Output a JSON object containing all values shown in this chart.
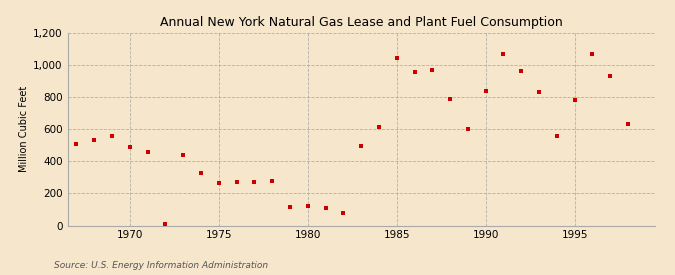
{
  "title": "Annual New York Natural Gas Lease and Plant Fuel Consumption",
  "ylabel": "Million Cubic Feet",
  "source": "Source: U.S. Energy Information Administration",
  "background_color": "#f5e6cc",
  "plot_bg_color": "#f5e6cc",
  "marker_color": "#cc0000",
  "xlim": [
    1966.5,
    1999.5
  ],
  "ylim": [
    0,
    1200
  ],
  "yticks": [
    0,
    200,
    400,
    600,
    800,
    1000,
    1200
  ],
  "xticks": [
    1970,
    1975,
    1980,
    1985,
    1990,
    1995
  ],
  "years": [
    1967,
    1968,
    1969,
    1970,
    1971,
    1972,
    1973,
    1974,
    1975,
    1976,
    1977,
    1978,
    1979,
    1980,
    1981,
    1982,
    1983,
    1984,
    1985,
    1986,
    1987,
    1988,
    1989,
    1990,
    1991,
    1992,
    1993,
    1994,
    1995,
    1996,
    1997,
    1998
  ],
  "values": [
    505,
    535,
    560,
    490,
    460,
    10,
    440,
    330,
    265,
    270,
    270,
    280,
    115,
    120,
    110,
    80,
    495,
    615,
    1045,
    960,
    970,
    790,
    600,
    840,
    1070,
    965,
    835,
    555,
    780,
    1070,
    935,
    630
  ]
}
